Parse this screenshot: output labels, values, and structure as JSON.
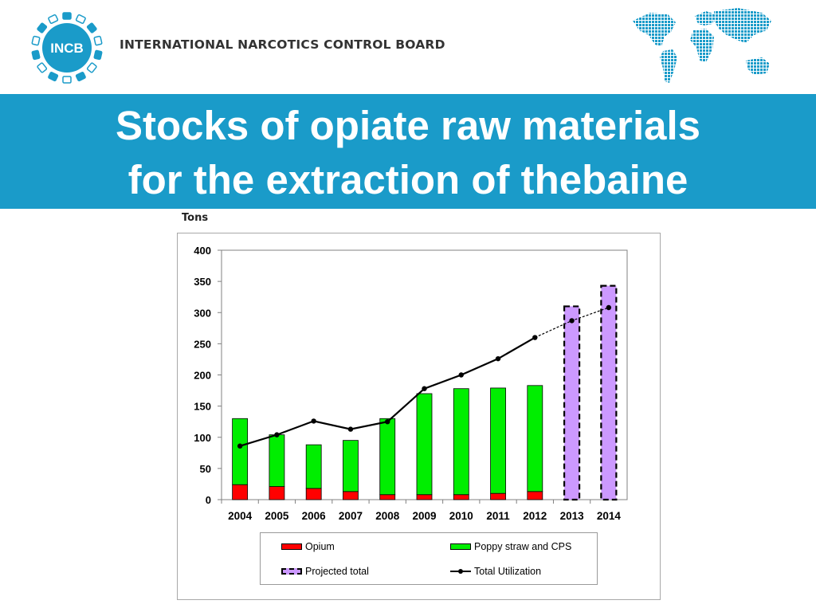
{
  "header": {
    "logo_text": "INCB",
    "org_name": "INTERNATIONAL NARCOTICS CONTROL BOARD",
    "logo_icon": "incb-gear-logo-icon",
    "map_icon": "dotted-world-map-icon"
  },
  "title": {
    "line1": "Stocks of opiate raw materials",
    "line2": "for the extraction of thebaine"
  },
  "colors": {
    "title_band": "#1a9bc9",
    "opium": "#ff0000",
    "poppy_straw": "#00ee00",
    "projected": "#cc99ff",
    "utilization": "#000000"
  },
  "chart_data": {
    "type": "bar",
    "ylabel": "Tons",
    "ylim": [
      0,
      400
    ],
    "yticks": [
      0,
      50,
      100,
      150,
      200,
      250,
      300,
      350,
      400
    ],
    "grid": false,
    "categories": [
      "2004",
      "2005",
      "2006",
      "2007",
      "2008",
      "2009",
      "2010",
      "2011",
      "2012",
      "2013",
      "2014"
    ],
    "series": [
      {
        "name": "Opium",
        "kind": "stacked-bar",
        "values": [
          24,
          21,
          18,
          13,
          8,
          8,
          8,
          10,
          13,
          null,
          null
        ]
      },
      {
        "name": "Poppy straw and CPS",
        "kind": "stacked-bar",
        "values": [
          106,
          83,
          70,
          82,
          122,
          162,
          170,
          169,
          170,
          null,
          null
        ]
      },
      {
        "name": "Projected total",
        "kind": "dashed-bar",
        "values": [
          null,
          null,
          null,
          null,
          null,
          null,
          null,
          null,
          null,
          310,
          343
        ]
      },
      {
        "name": "Total Utilization",
        "kind": "line",
        "values": [
          86,
          104,
          126,
          113,
          125,
          178,
          200,
          226,
          260,
          287,
          308
        ]
      }
    ],
    "line_note": "solid through 2012, dashed for 2012-2014",
    "legend_position": "bottom"
  }
}
